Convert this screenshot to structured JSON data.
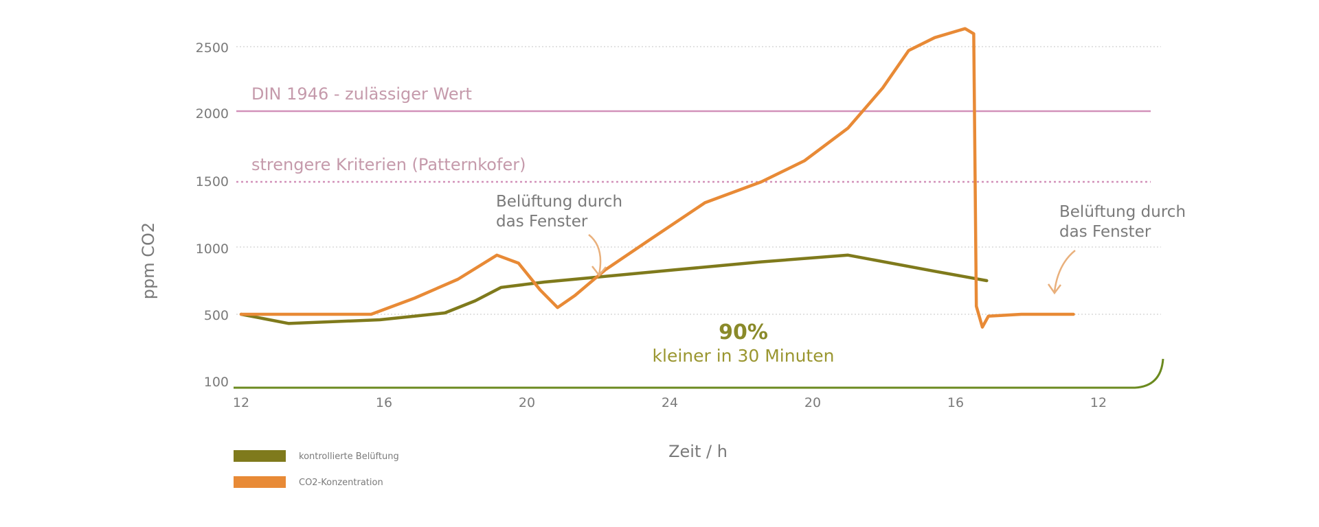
{
  "chart_data": {
    "type": "line",
    "ylabel": "ppm CO2",
    "xlabel": "Zeit / h",
    "y_ticks": [
      2500,
      2000,
      1500,
      1000,
      500,
      100
    ],
    "x_ticks": [
      "12",
      "16",
      "20",
      "24",
      "20",
      "16",
      "12"
    ],
    "ylim": [
      100,
      2500
    ],
    "grid": "dotted horizontal",
    "reference_lines": [
      {
        "label": "DIN 1946 - zulässiger Wert",
        "value": 2000,
        "style": "solid",
        "color": "#d291b9"
      },
      {
        "label": "strengere Kriterien (Patternkofer)",
        "value": 1500,
        "style": "dotted",
        "color": "#d291b9"
      }
    ],
    "series": [
      {
        "name": "kontrollierte Belüftung",
        "color": "#7f7a1c",
        "points": [
          [
            0,
            500
          ],
          [
            0.55,
            450
          ],
          [
            1.6,
            470
          ],
          [
            2.0,
            490
          ],
          [
            2.35,
            510
          ],
          [
            2.7,
            600
          ],
          [
            3.0,
            700
          ],
          [
            3.5,
            740
          ],
          [
            4.0,
            770
          ],
          [
            5.0,
            830
          ],
          [
            6.0,
            890
          ],
          [
            7.0,
            940
          ],
          [
            8.0,
            820
          ],
          [
            8.6,
            750
          ]
        ]
      },
      {
        "name": "CO2-Konzentration",
        "color": "#e88a36",
        "points": [
          [
            0,
            500
          ],
          [
            1.0,
            500
          ],
          [
            1.5,
            500
          ],
          [
            2.0,
            620
          ],
          [
            2.5,
            760
          ],
          [
            2.95,
            940
          ],
          [
            3.2,
            880
          ],
          [
            3.45,
            680
          ],
          [
            3.65,
            550
          ],
          [
            3.85,
            640
          ],
          [
            4.2,
            830
          ],
          [
            4.7,
            1050
          ],
          [
            5.35,
            1340
          ],
          [
            6.0,
            1500
          ],
          [
            6.5,
            1650
          ],
          [
            7.0,
            1880
          ],
          [
            7.4,
            2180
          ],
          [
            7.7,
            2470
          ],
          [
            8.0,
            2570
          ],
          [
            8.35,
            2640
          ],
          [
            8.45,
            2600
          ],
          [
            8.48,
            560
          ],
          [
            8.55,
            430
          ],
          [
            8.62,
            490
          ],
          [
            9.0,
            500
          ],
          [
            9.6,
            500
          ]
        ]
      }
    ],
    "annotations": [
      {
        "line1": "Belüftung durch",
        "line2": "das Fenster"
      },
      {
        "line1": "Belüftung durch",
        "line2": "das Fenster"
      }
    ],
    "highlight": {
      "value": "90%",
      "text": "kleiner in 30 Minuten"
    },
    "legend": [
      "kontrollierte Belüftung",
      "CO2-Konzentration"
    ],
    "legend_position": "bottom-left"
  }
}
